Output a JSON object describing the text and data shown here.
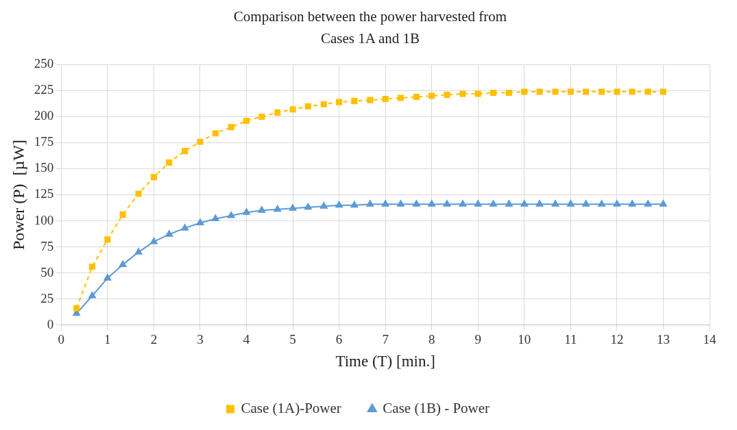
{
  "chart_data": {
    "type": "line",
    "title": "Comparison between the power harvested from Cases 1A and 1B",
    "xlabel": "Time (T) [min.]",
    "ylabel": "Power (P)  [µW]",
    "x": [
      0.33,
      0.67,
      1,
      1.33,
      1.67,
      2,
      2.33,
      2.67,
      3,
      3.33,
      3.67,
      4,
      4.33,
      4.67,
      5,
      5.33,
      5.67,
      6,
      6.33,
      6.67,
      7,
      7.33,
      7.67,
      8,
      8.33,
      8.67,
      9,
      9.33,
      9.67,
      10,
      10.33,
      10.67,
      11,
      11.33,
      11.67,
      12,
      12.33,
      12.67,
      13
    ],
    "series": [
      {
        "name": "Case (1A)-Power",
        "color": "#ffc000",
        "marker": "square",
        "line_style": "dashed",
        "values": [
          16,
          56,
          82,
          106,
          126,
          142,
          156,
          167,
          176,
          184,
          190,
          196,
          200,
          204,
          207,
          210,
          212,
          214,
          215,
          216,
          217,
          218,
          219,
          220,
          221,
          222,
          222,
          223,
          223,
          224,
          224,
          224,
          224,
          224,
          224,
          224,
          224,
          224,
          224
        ]
      },
      {
        "name": "Case (1B) - Power",
        "color": "#5b9bd5",
        "marker": "triangle",
        "line_style": "solid",
        "values": [
          11,
          28,
          45,
          58,
          70,
          80,
          87,
          93,
          98,
          102,
          105,
          108,
          110,
          111,
          112,
          113,
          114,
          115,
          115,
          116,
          116,
          116,
          116,
          116,
          116,
          116,
          116,
          116,
          116,
          116,
          116,
          116,
          116,
          116,
          116,
          116,
          116,
          116,
          116
        ]
      }
    ],
    "xlim": [
      0,
      14
    ],
    "xticks": [
      0,
      1,
      2,
      3,
      4,
      5,
      6,
      7,
      8,
      9,
      10,
      11,
      12,
      13,
      14
    ],
    "ylim": [
      0,
      250
    ],
    "yticks": [
      0,
      25,
      50,
      75,
      100,
      125,
      150,
      175,
      200,
      225,
      250
    ],
    "grid": true,
    "legend": "bottom"
  }
}
